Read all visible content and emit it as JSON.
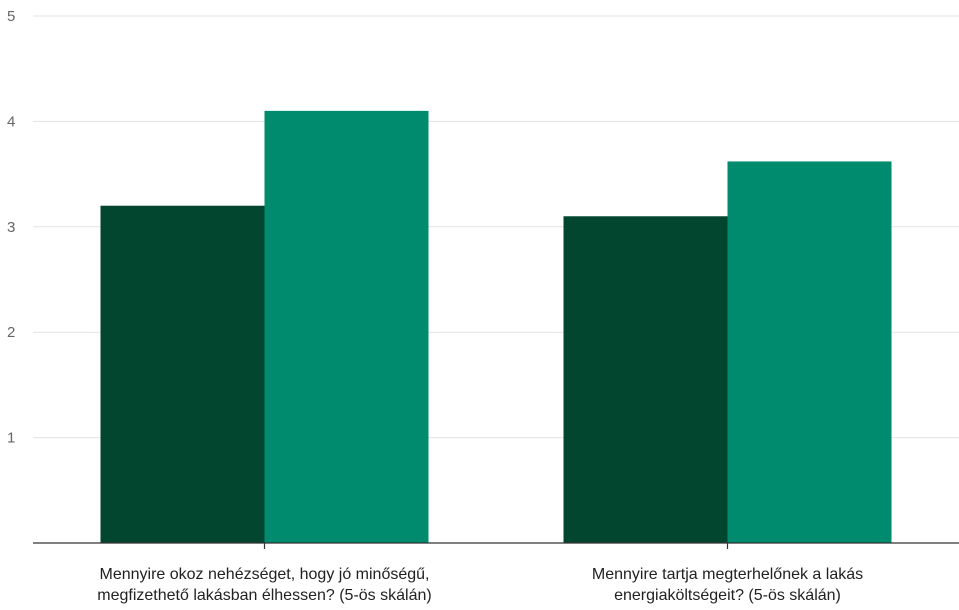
{
  "chart_data": {
    "type": "bar",
    "title": "",
    "xlabel": "",
    "ylabel": "",
    "ylim": [
      0,
      5
    ],
    "yticks": [
      1,
      2,
      3,
      4,
      5
    ],
    "grid": true,
    "categories": [
      [
        "Mennyire okoz nehézséget, hogy jó minőségű,",
        "megfizethető lakásban élhessen? (5-ös skálán)"
      ],
      [
        "Mennyire tartja megterhelőnek a lakás",
        "energiaköltségeit? (5-ös skálán)"
      ]
    ],
    "series": [
      {
        "values": [
          3.2,
          3.1
        ],
        "color": "#034630"
      },
      {
        "values": [
          4.1,
          3.62
        ],
        "color": "#008a6e"
      }
    ]
  }
}
